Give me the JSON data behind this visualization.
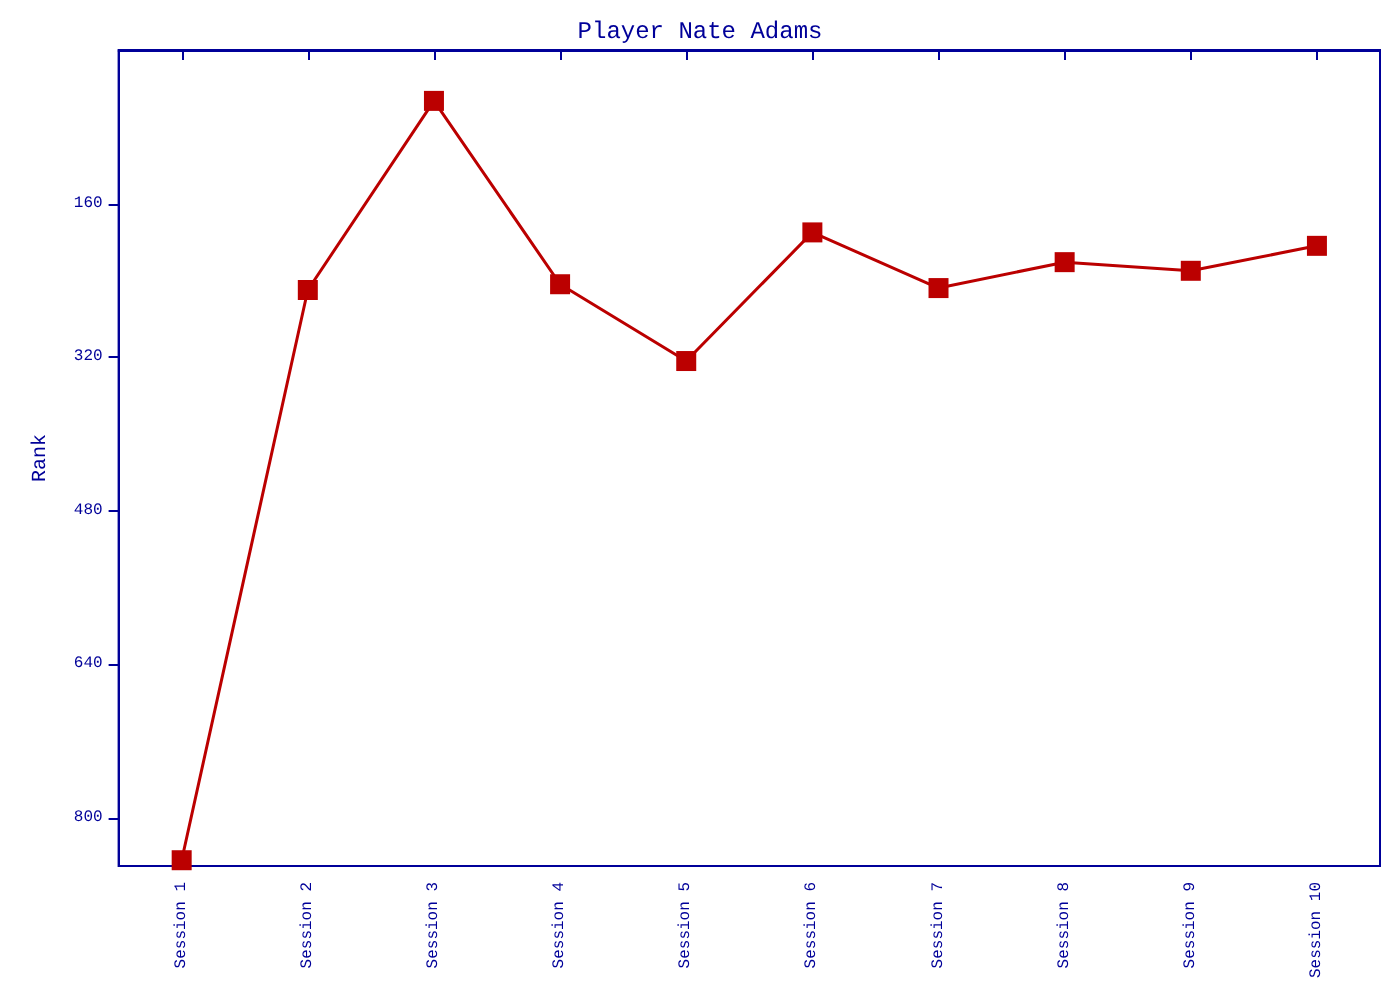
{
  "chart_data": {
    "type": "line",
    "title": "Player Nate Adams",
    "ylabel": "Rank",
    "categories": [
      "Session 1",
      "Session 2",
      "Session 3",
      "Session 4",
      "Session 5",
      "Session 6",
      "Session 7",
      "Session 8",
      "Session 9",
      "Session 10"
    ],
    "series": [
      {
        "color": "#bb0000",
        "values": [
          844,
          250,
          53,
          244,
          324,
          190,
          248,
          221,
          230,
          204
        ]
      }
    ],
    "ylim": [
      850,
      0
    ],
    "yticks": [
      160,
      320,
      480,
      640,
      800
    ],
    "grid": false,
    "marker": "square",
    "line_style": "solid"
  }
}
